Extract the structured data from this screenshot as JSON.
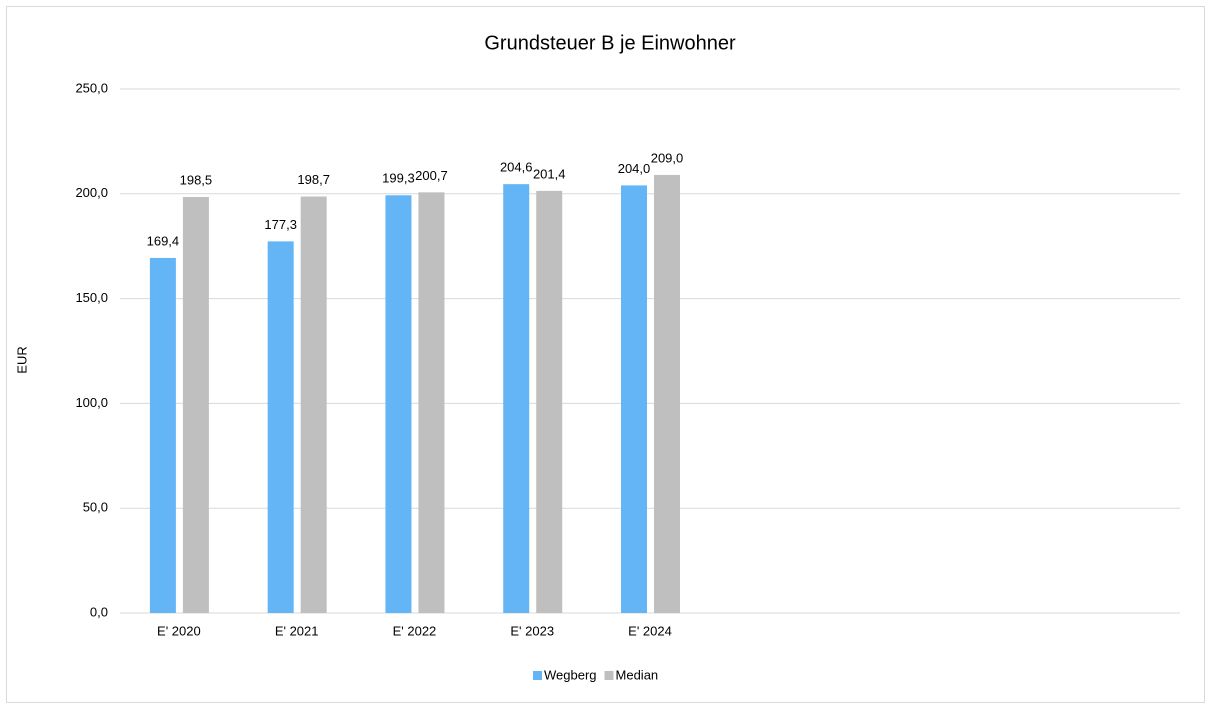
{
  "chart_data": {
    "type": "bar",
    "title": "Grundsteuer B je Einwohner",
    "y_label": "EUR",
    "categories": [
      "E' 2020",
      "E' 2021",
      "E' 2022",
      "E' 2023",
      "E' 2024",
      null,
      null,
      null,
      null
    ],
    "series": [
      {
        "name": "Wegberg",
        "color": "#63b5f5",
        "values": [
          169.4,
          177.3,
          199.3,
          204.6,
          204.0,
          null,
          null,
          null,
          null
        ],
        "value_labels": [
          "169,4",
          "177,3",
          "199,3",
          "204,6",
          "204,0",
          null,
          null,
          null,
          null
        ]
      },
      {
        "name": "Median",
        "color": "#bfbfbf",
        "values": [
          198.5,
          198.7,
          200.7,
          201.4,
          209.0,
          null,
          null,
          null,
          null
        ],
        "value_labels": [
          "198,5",
          "198,7",
          "200,7",
          "201,4",
          "209,0",
          null,
          null,
          null,
          null
        ]
      }
    ],
    "ylim": [
      0,
      250
    ],
    "yticks": [
      {
        "value": 0,
        "label": "0,0"
      },
      {
        "value": 50,
        "label": "50,0"
      },
      {
        "value": 100,
        "label": "100,0"
      },
      {
        "value": 150,
        "label": "150,0"
      },
      {
        "value": 200,
        "label": "200,0"
      },
      {
        "value": 250,
        "label": "250,0"
      }
    ],
    "grid": true,
    "legend": "bottom"
  }
}
